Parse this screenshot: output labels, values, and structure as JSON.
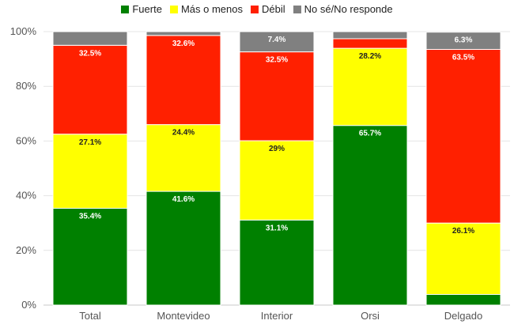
{
  "chart_data": {
    "type": "bar",
    "stacked": true,
    "categories": [
      "Total",
      "Montevideo",
      "Interior",
      "Orsi",
      "Delgado"
    ],
    "series": [
      {
        "name": "Fuerte",
        "color": "#008000",
        "values": [
          35.4,
          41.6,
          31.1,
          65.7,
          3.9
        ],
        "labels": [
          "35.4%",
          "41.6%",
          "31.1%",
          "65.7%",
          ""
        ]
      },
      {
        "name": "Más o menos",
        "color": "#FFFF00",
        "values": [
          27.1,
          24.4,
          29,
          28.2,
          26.1
        ],
        "labels": [
          "27.1%",
          "24.4%",
          "29%",
          "28.2%",
          "26.1%"
        ]
      },
      {
        "name": "Débil",
        "color": "#FF2000",
        "values": [
          32.5,
          32.6,
          32.5,
          3.5,
          63.5
        ],
        "labels": [
          "32.5%",
          "32.6%",
          "32.5%",
          "",
          "63.5%"
        ]
      },
      {
        "name": "No sé/No responde",
        "color": "#808080",
        "values": [
          5.0,
          1.4,
          7.4,
          2.6,
          6.3
        ],
        "labels": [
          "",
          "",
          "7.4%",
          "",
          "6.3%"
        ]
      }
    ],
    "ylim": [
      0,
      100
    ],
    "yticks": [
      "0%",
      "20%",
      "40%",
      "60%",
      "80%",
      "100%"
    ],
    "ytick_values": [
      0,
      20,
      40,
      60,
      80,
      100
    ],
    "legend": "top",
    "grid": true,
    "title": "",
    "xlabel": "",
    "ylabel": ""
  }
}
